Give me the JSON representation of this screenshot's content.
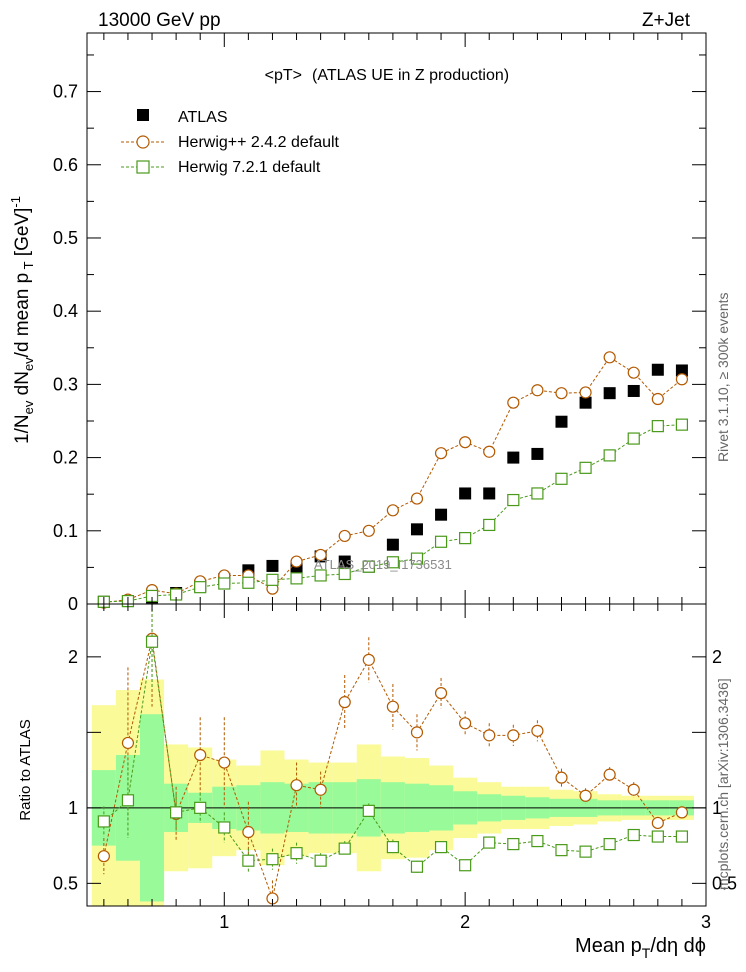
{
  "header": {
    "energy_label": "13000 GeV pp",
    "process_label": "Z+Jet"
  },
  "side_labels": {
    "generator_note": "Rivet 3.1.10, ≥ 300k events",
    "site_note": "mcplots.cern.ch [arXiv:1306.3436]"
  },
  "chart_data": {
    "type": "scatter",
    "title": "<pT>",
    "subtitle": "(ATLAS UE in Z production)",
    "watermark": "ATLAS_2019_I1736531",
    "xlabel": "Mean p_T/dη dϕ",
    "ylabel": "1/N_ev dN_ev/d mean p_T [GeV]^-1",
    "ylabel_ratio": "Ratio to ATLAS",
    "xlim": [
      0.43,
      3.0
    ],
    "ylim": [
      0,
      0.78
    ],
    "ratio_ylim": [
      0.35,
      2.35
    ],
    "xticks": [
      {
        "v": 1,
        "label": "1"
      },
      {
        "v": 2,
        "label": "2"
      },
      {
        "v": 3,
        "label": "3"
      }
    ],
    "yticks": [
      {
        "v": 0,
        "label": "0"
      },
      {
        "v": 0.1,
        "label": "0.1"
      },
      {
        "v": 0.2,
        "label": "0.2"
      },
      {
        "v": 0.3,
        "label": "0.3"
      },
      {
        "v": 0.4,
        "label": "0.4"
      },
      {
        "v": 0.5,
        "label": "0.5"
      },
      {
        "v": 0.6,
        "label": "0.6"
      },
      {
        "v": 0.7,
        "label": "0.7"
      }
    ],
    "ratio_yticks": [
      {
        "v": 0.5,
        "label": "0.5"
      },
      {
        "v": 1,
        "label": "1"
      },
      {
        "v": 2,
        "label": "2"
      }
    ],
    "legend_position": "top-left",
    "x": [
      0.5,
      0.6,
      0.7,
      0.8,
      0.9,
      1.0,
      1.1,
      1.2,
      1.3,
      1.4,
      1.5,
      1.6,
      1.7,
      1.8,
      1.9,
      2.0,
      2.1,
      2.2,
      2.3,
      2.4,
      2.5,
      2.6,
      2.7,
      2.8,
      2.9
    ],
    "bin_edges": [
      0.45,
      0.55,
      0.65,
      0.75,
      0.85,
      0.95,
      1.05,
      1.15,
      1.25,
      1.35,
      1.45,
      1.55,
      1.65,
      1.75,
      1.85,
      1.95,
      2.05,
      2.15,
      2.25,
      2.35,
      2.45,
      2.55,
      2.65,
      2.75,
      2.85,
      2.95
    ],
    "series": [
      {
        "name": "ATLAS",
        "marker": "filled-square",
        "color": "#000000",
        "values": [
          0.003,
          0.004,
          0.009,
          0.015,
          0.025,
          0.034,
          0.046,
          0.052,
          0.051,
          0.065,
          0.058,
          0.051,
          0.081,
          0.102,
          0.122,
          0.151,
          0.151,
          0.2,
          0.205,
          0.249,
          0.275,
          0.288,
          0.291,
          0.32,
          0.319
        ]
      },
      {
        "name": "Herwig++ 2.4.2 default",
        "marker": "open-circle",
        "color": "#b35900",
        "values": [
          0.002,
          0.006,
          0.019,
          0.014,
          0.031,
          0.039,
          0.039,
          0.021,
          0.058,
          0.067,
          0.093,
          0.1,
          0.128,
          0.144,
          0.206,
          0.221,
          0.208,
          0.275,
          0.292,
          0.288,
          0.289,
          0.337,
          0.316,
          0.28,
          0.307
        ],
        "ratio": [
          0.68,
          1.43,
          2.12,
          0.96,
          1.35,
          1.3,
          0.84,
          0.4,
          1.15,
          1.12,
          1.7,
          1.98,
          1.67,
          1.5,
          1.76,
          1.56,
          1.48,
          1.48,
          1.51,
          1.2,
          1.08,
          1.22,
          1.12,
          0.9,
          0.97
        ],
        "ratio_err": [
          0.12,
          0.5,
          0.45,
          0.18,
          0.25,
          0.3,
          0.2,
          0.12,
          0.15,
          0.12,
          0.18,
          0.15,
          0.15,
          0.12,
          0.1,
          0.08,
          0.08,
          0.07,
          0.07,
          0.06,
          0.05,
          0.05,
          0.05,
          0.04,
          0.04
        ]
      },
      {
        "name": "Herwig 7.2.1 default",
        "marker": "open-square",
        "color": "#4a9a1a",
        "values": [
          0.003,
          0.004,
          0.011,
          0.013,
          0.023,
          0.028,
          0.029,
          0.033,
          0.035,
          0.039,
          0.041,
          0.051,
          0.057,
          0.062,
          0.085,
          0.09,
          0.108,
          0.142,
          0.151,
          0.171,
          0.186,
          0.203,
          0.226,
          0.243,
          0.245
        ],
        "ratio": [
          0.91,
          1.05,
          2.1,
          0.97,
          1.0,
          0.87,
          0.65,
          0.66,
          0.7,
          0.65,
          0.73,
          0.98,
          0.74,
          0.61,
          0.74,
          0.62,
          0.77,
          0.76,
          0.78,
          0.72,
          0.71,
          0.76,
          0.82,
          0.81,
          0.81
        ],
        "ratio_err": [
          0.1,
          0.25,
          0.3,
          0.12,
          0.1,
          0.1,
          0.08,
          0.07,
          0.07,
          0.05,
          0.05,
          0.05,
          0.05,
          0.04,
          0.04,
          0.03,
          0.03,
          0.03,
          0.03,
          0.025,
          0.025,
          0.02,
          0.02,
          0.02,
          0.02
        ]
      }
    ],
    "bands": {
      "green_half_width": [
        0.25,
        0.35,
        0.62,
        0.16,
        0.1,
        0.14,
        0.15,
        0.17,
        0.16,
        0.17,
        0.17,
        0.19,
        0.17,
        0.16,
        0.15,
        0.11,
        0.09,
        0.08,
        0.07,
        0.06,
        0.06,
        0.05,
        0.05,
        0.05,
        0.05
      ],
      "yellow_half_width": [
        0.68,
        0.78,
        0.85,
        0.42,
        0.4,
        0.32,
        0.28,
        0.38,
        0.32,
        0.3,
        0.3,
        0.42,
        0.34,
        0.33,
        0.28,
        0.2,
        0.17,
        0.14,
        0.14,
        0.12,
        0.11,
        0.09,
        0.08,
        0.08,
        0.08
      ],
      "green_color": "#98fa98",
      "yellow_color": "#fafa98"
    }
  }
}
